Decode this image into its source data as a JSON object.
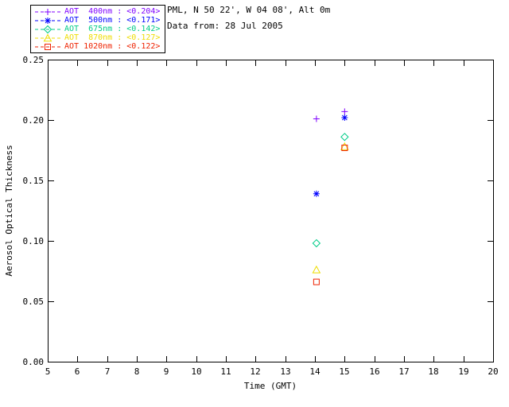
{
  "page": {
    "background": "#ffffff",
    "axis_color": "#000000"
  },
  "header": {
    "station": "PML, N 50 22', W 04 08', Alt 0m",
    "date": "Data from: 28 Jul 2005"
  },
  "chart_data": {
    "type": "scatter",
    "title": "",
    "xlabel": "Time (GMT)",
    "ylabel": "Aerosol Optical Thickness",
    "xlim": [
      5,
      20
    ],
    "ylim": [
      0,
      0.25
    ],
    "x_ticks": [
      5,
      6,
      7,
      8,
      9,
      10,
      11,
      12,
      13,
      14,
      15,
      16,
      17,
      18,
      19,
      20
    ],
    "y_ticks": [
      0.0,
      0.05,
      0.1,
      0.15,
      0.2,
      0.25
    ],
    "grid": false,
    "legend_position": "top-left",
    "legend_line_style": "dashed",
    "series": [
      {
        "name": "AOT 400nm",
        "label": "AOT  400nm : <0.204>",
        "mean": 0.204,
        "color": "#7f00ff",
        "marker": "plus",
        "x": [
          14.05,
          15.0
        ],
        "y": [
          0.201,
          0.207
        ]
      },
      {
        "name": "AOT 500nm",
        "label": "AOT  500nm : <0.171>",
        "mean": 0.171,
        "color": "#0000ff",
        "marker": "asterisk",
        "x": [
          14.05,
          15.0
        ],
        "y": [
          0.139,
          0.202
        ]
      },
      {
        "name": "AOT 675nm",
        "label": "AOT  675nm : <0.142>",
        "mean": 0.142,
        "color": "#00cc88",
        "marker": "diamond",
        "x": [
          14.05,
          15.0
        ],
        "y": [
          0.098,
          0.186
        ]
      },
      {
        "name": "AOT 870nm",
        "label": "AOT  870nm : <0.127>",
        "mean": 0.127,
        "color": "#eedd00",
        "marker": "triangle",
        "x": [
          14.05,
          15.0
        ],
        "y": [
          0.076,
          0.178
        ]
      },
      {
        "name": "AOT 1020nm",
        "label": "AOT 1020nm : <0.122>",
        "mean": 0.122,
        "color": "#ee2200",
        "marker": "square",
        "x": [
          14.05,
          15.0
        ],
        "y": [
          0.066,
          0.177
        ]
      }
    ]
  }
}
